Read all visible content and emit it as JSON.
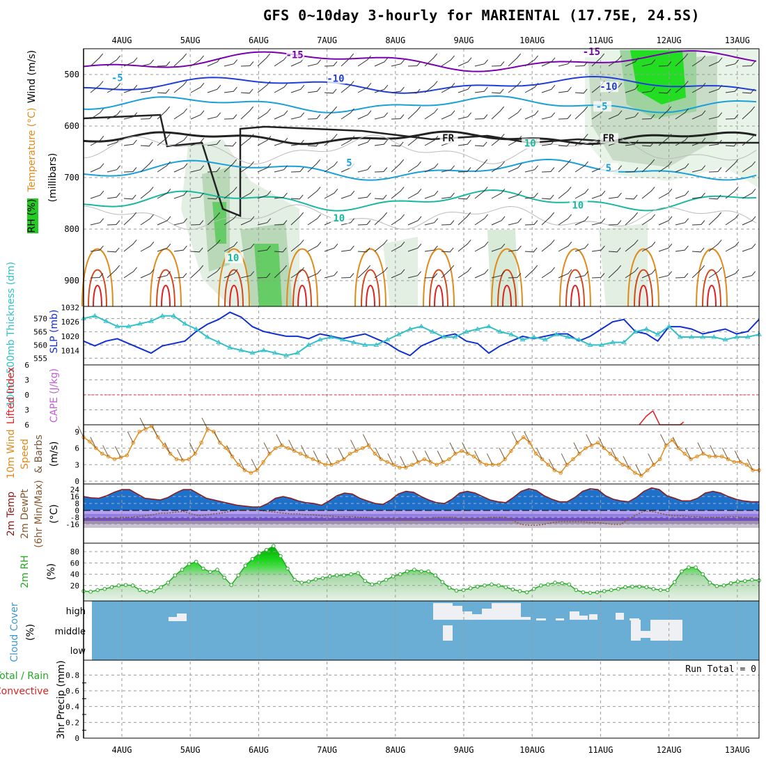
{
  "title": "GFS 0~10day 3-hourly for MARIENTAL (17.75E, 24.5S)",
  "dates": [
    "4AUG",
    "5AUG",
    "6AUG",
    "7AUG",
    "8AUG",
    "9AUG",
    "10AUG",
    "11AUG",
    "12AUG",
    "13AUG"
  ],
  "colors": {
    "grid": "#b0b0b0",
    "rh_green": "#22cc22",
    "temp_purple": "#7a00b0",
    "temp_blue": "#1f3fd8",
    "temp_cyan": "#1aa0d8",
    "temp_teal": "#18b8a0",
    "temp_orange": "#e08a1a",
    "temp_red": "#e02020",
    "slp": "#1030d0",
    "thickness": "#30c0c8",
    "wind": "#e08a1a",
    "cloud": "#6aaed6",
    "cloud_white": "#eef0f4",
    "dewpoint": "#8a5a30",
    "rh2m": "#22aa22"
  },
  "chart_data": [
    {
      "type": "contour",
      "panel": "upper-air",
      "ylabel_wind": "Wind (m/s)",
      "ylabel_temp": "Temperature (°C)",
      "ylabel_rh": "RH (%)",
      "ylabel_pressure": "(millibars)",
      "ylim": [
        950,
        450
      ],
      "yticks": [
        500,
        600,
        700,
        800,
        900
      ],
      "contour_labels": [
        {
          "label": "-15",
          "day": 2.95,
          "pressure": 468
        },
        {
          "label": "-15",
          "day": 7.3,
          "pressure": 462
        },
        {
          "label": "-10",
          "day": 3.55,
          "pressure": 514
        },
        {
          "label": "-10",
          "day": 7.55,
          "pressure": 530
        },
        {
          "label": "-5",
          "day": 0.35,
          "pressure": 513
        },
        {
          "label": "-5",
          "day": 7.45,
          "pressure": 568
        },
        {
          "label": "FR",
          "day": 5.2,
          "pressure": 630
        },
        {
          "label": "FR",
          "day": 7.55,
          "pressure": 630
        },
        {
          "label": "5",
          "day": 3.75,
          "pressure": 678
        },
        {
          "label": "5",
          "day": 7.55,
          "pressure": 688
        },
        {
          "label": "10",
          "day": 7.1,
          "pressure": 760
        },
        {
          "label": "10",
          "day": 2.05,
          "pressure": 862
        },
        {
          "label": "10",
          "day": 6.4,
          "pressure": 640
        },
        {
          "label": "10",
          "day": 3.6,
          "pressure": 785
        }
      ]
    },
    {
      "type": "line",
      "panel": "pressure-thickness",
      "ylabel_left": "1000~500mb Thickness (dm)",
      "ylabel_right": "SLP (mb)",
      "yticks_left": [
        570,
        565,
        560,
        555
      ],
      "yticks_right": [
        1032,
        1026,
        1020,
        1014
      ],
      "series": [
        {
          "name": "SLP (mb)",
          "axis": "right",
          "x_step_hours": 6,
          "values": [
            1018,
            1016,
            1018,
            1019,
            1017,
            1015,
            1013,
            1016,
            1017,
            1018,
            1022,
            1025,
            1027,
            1030,
            1028,
            1024,
            1022,
            1021,
            1020,
            1020,
            1019,
            1021,
            1020,
            1019,
            1020,
            1021,
            1019,
            1017,
            1014,
            1012,
            1016,
            1018,
            1020,
            1021,
            1018,
            1017,
            1013,
            1016,
            1018,
            1020,
            1019,
            1020,
            1021,
            1021,
            1018,
            1020,
            1023,
            1026,
            1027,
            1022,
            1021,
            1018,
            1024,
            1024,
            1023,
            1021,
            1022,
            1023,
            1021,
            1022,
            1027
          ]
        },
        {
          "name": "Thickness (dm)",
          "axis": "left",
          "x_step_hours": 6,
          "values": [
            570,
            571,
            569,
            567,
            567,
            568,
            569,
            571,
            571,
            568,
            566,
            563,
            561,
            559,
            558,
            557,
            558,
            557,
            556,
            557,
            560,
            562,
            563,
            562,
            561,
            560,
            560,
            562,
            564,
            566,
            567,
            565,
            563,
            563,
            565,
            566,
            567,
            565,
            564,
            562,
            563,
            562,
            564,
            563,
            562,
            560,
            560,
            561,
            561,
            565,
            566,
            564,
            567,
            563,
            563,
            563,
            563,
            562,
            563,
            563,
            564
          ]
        }
      ]
    },
    {
      "type": "line",
      "panel": "instability",
      "ylabel_left": "Lifted Index",
      "ylabel_right": "CAPE (J/kg)",
      "yticks": [
        -6,
        -3,
        0,
        3,
        6
      ],
      "series": [
        {
          "name": "CAPE (J/kg)",
          "points": [
            {
              "day": 8.0,
              "value": 0
            },
            {
              "day": 8.1,
              "value": 3
            },
            {
              "day": 8.2,
              "value": 5
            },
            {
              "day": 8.3,
              "value": 0
            },
            {
              "day": 8.6,
              "value": 0
            },
            {
              "day": 8.65,
              "value": 1
            }
          ]
        }
      ]
    },
    {
      "type": "line",
      "panel": "10m-wind",
      "ylabel": "10m Wind Speed & Barbs (m/s)",
      "yticks": [
        0,
        3,
        6,
        9
      ],
      "series": [
        {
          "name": "10m Wind Speed",
          "x_step_hours": 3,
          "values": [
            8,
            7.2,
            6,
            5,
            4.5,
            4,
            4.3,
            4.7,
            7,
            9,
            9.5,
            10,
            8,
            6.5,
            5,
            4,
            3.8,
            4,
            5,
            7,
            9.5,
            9,
            7,
            6,
            4.5,
            3,
            2,
            1.5,
            2,
            3.5,
            5,
            6,
            6.5,
            6,
            5.5,
            5,
            4.5,
            4,
            3.5,
            3,
            3,
            3.5,
            4,
            5,
            5.5,
            6,
            6.5,
            5,
            4,
            3.5,
            3,
            2.5,
            2.5,
            3,
            3.5,
            4,
            3.5,
            3,
            3.5,
            4,
            5,
            5.5,
            5,
            4.5,
            3.5,
            3,
            3,
            3,
            4,
            5.5,
            7,
            8,
            7,
            5,
            4,
            3,
            2,
            1.5,
            3,
            4,
            5,
            6,
            6.5,
            7,
            6,
            5,
            4,
            3,
            2.5,
            1.5,
            1,
            2,
            3,
            4,
            6.5,
            7.5,
            6,
            5,
            4,
            4.5,
            5,
            4.5,
            4.5,
            4.5,
            4,
            3.5,
            3.5,
            3,
            2,
            2
          ]
        }
      ]
    },
    {
      "type": "area",
      "panel": "2m-temperature",
      "ylabel": "2m Temp 2m DewPt (6hr Min/Max) (°C)",
      "yticks": [
        24,
        16,
        8,
        0,
        -8,
        -16
      ],
      "series": [
        {
          "name": "2m Temp",
          "x_step_hours": 3,
          "values": [
            16,
            14.5,
            14,
            17,
            21,
            24,
            24,
            19,
            14,
            13,
            12,
            15,
            20,
            24,
            24,
            19,
            14,
            12,
            10,
            8,
            6,
            5,
            4,
            4,
            8,
            14,
            16,
            14,
            11,
            9,
            8,
            6,
            11,
            17,
            20,
            19,
            14,
            11,
            8,
            7,
            12,
            19,
            22,
            21,
            16,
            12,
            9,
            8,
            13,
            20,
            22,
            20,
            16,
            12,
            10,
            9,
            15,
            22,
            25,
            23,
            17,
            13,
            10,
            10,
            15,
            22,
            25,
            24,
            17,
            13,
            11,
            10,
            15,
            22,
            26,
            24,
            17,
            14,
            11,
            11,
            14,
            20,
            22,
            20,
            16,
            13,
            11,
            10,
            10
          ]
        },
        {
          "name": "2m DewPt",
          "x_step_hours": 3,
          "values": [
            -10,
            -10,
            -9,
            -9,
            -9,
            -8,
            -8,
            -7,
            -6,
            -5,
            -3,
            -3,
            -2,
            -1,
            -4,
            -6,
            -5,
            -4,
            -3,
            -1,
            0,
            1,
            1,
            0,
            -1,
            -2,
            -3,
            -4,
            -4,
            -5,
            -5,
            -6,
            -6,
            -7,
            -7,
            -7,
            -8,
            -8,
            -9,
            -9,
            -10,
            -10,
            -11,
            -11,
            -10,
            -9,
            -8,
            -8,
            -8,
            -9,
            -10,
            -10,
            -9,
            -8,
            -8,
            -8,
            -12,
            -16,
            -17,
            -17,
            -16,
            -14,
            -13,
            -13,
            -13,
            -13,
            -14,
            -14,
            -15,
            -16,
            -16,
            -10,
            -5,
            -1,
            -1,
            -3,
            -5,
            -6,
            -6,
            -7,
            -7,
            -8,
            -8,
            -8,
            -7,
            -7,
            -8,
            -8,
            -9
          ]
        }
      ]
    },
    {
      "type": "area",
      "panel": "2m-rh",
      "ylabel": "2m RH (%)",
      "yticks": [
        20,
        40,
        60,
        80
      ],
      "series": [
        {
          "name": "2m RH",
          "x_step_hours": 3,
          "values": [
            10,
            9,
            12,
            14,
            17,
            20,
            21,
            20,
            12,
            9,
            10,
            17,
            25,
            38,
            48,
            58,
            62,
            50,
            44,
            48,
            34,
            21,
            38,
            55,
            67,
            77,
            83,
            90,
            72,
            50,
            30,
            25,
            27,
            31,
            33,
            36,
            38,
            38,
            40,
            42,
            28,
            22,
            25,
            30,
            36,
            40,
            45,
            48,
            45,
            45,
            38,
            26,
            16,
            11,
            12,
            15,
            18,
            20,
            22,
            20,
            17,
            13,
            10,
            8,
            14,
            20,
            22,
            25,
            24,
            22,
            12,
            8,
            7,
            8,
            10,
            12,
            14,
            17,
            18,
            18,
            17,
            14,
            12,
            12,
            26,
            45,
            52,
            52,
            40,
            25,
            19,
            20,
            24,
            27,
            28,
            30,
            29
          ]
        }
      ]
    },
    {
      "type": "heatmap",
      "panel": "cloud-cover",
      "ylabel": "Cloud Cover (%)",
      "levels": [
        "high",
        "middle",
        "low"
      ],
      "coverage_notes": "white blocks = cloud; blue = clear"
    },
    {
      "type": "bar",
      "panel": "precip",
      "ylabel": "3hr Precip (mm)",
      "legend_left": "Total / Rain",
      "legend_left2": "Convective",
      "run_total_label": "Run Total = 0",
      "yticks": [
        0,
        0.2,
        0.4,
        0.6,
        0.8
      ],
      "values": []
    }
  ]
}
